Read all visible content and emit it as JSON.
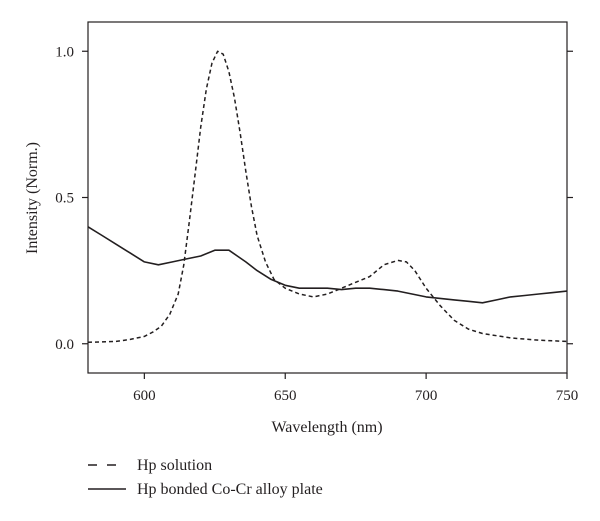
{
  "chart_data": {
    "type": "line",
    "title": "",
    "xlabel": "Wavelength (nm)",
    "ylabel": "Intensity (Norm.)",
    "xlim": [
      580,
      750
    ],
    "ylim": [
      -0.1,
      1.1
    ],
    "xticks": [
      600,
      650,
      700,
      750
    ],
    "xtick_labels": [
      "600",
      "650",
      "700",
      "750"
    ],
    "yticks": [
      0.0,
      0.5,
      1.0
    ],
    "ytick_labels": [
      "0.0",
      "0.5",
      "1.0"
    ],
    "grid": false,
    "legend_position": "bottom-left, below plot",
    "series": [
      {
        "name": "Hp solution",
        "style": "dashed",
        "x": [
          580,
          590,
          595,
          600,
          603,
          606,
          609,
          612,
          614,
          616,
          618,
          620,
          622,
          624,
          626,
          628,
          630,
          632,
          634,
          636,
          638,
          640,
          643,
          646,
          650,
          655,
          660,
          665,
          670,
          675,
          680,
          685,
          690,
          693,
          696,
          700,
          705,
          710,
          715,
          720,
          730,
          740,
          750
        ],
        "y": [
          0.005,
          0.008,
          0.015,
          0.025,
          0.04,
          0.06,
          0.1,
          0.17,
          0.27,
          0.42,
          0.58,
          0.74,
          0.87,
          0.96,
          1.0,
          0.99,
          0.93,
          0.84,
          0.72,
          0.59,
          0.47,
          0.37,
          0.28,
          0.22,
          0.19,
          0.17,
          0.16,
          0.17,
          0.19,
          0.21,
          0.23,
          0.27,
          0.285,
          0.28,
          0.25,
          0.19,
          0.13,
          0.08,
          0.05,
          0.035,
          0.02,
          0.012,
          0.008
        ]
      },
      {
        "name": "Hp bonded Co-Cr alloy plate",
        "style": "solid",
        "x": [
          580,
          585,
          590,
          595,
          600,
          605,
          610,
          615,
          620,
          625,
          628,
          630,
          633,
          636,
          640,
          645,
          650,
          655,
          660,
          665,
          670,
          675,
          680,
          685,
          690,
          695,
          700,
          705,
          710,
          715,
          720,
          725,
          730,
          735,
          740,
          745,
          750
        ],
        "y": [
          0.4,
          0.37,
          0.34,
          0.31,
          0.28,
          0.27,
          0.28,
          0.29,
          0.3,
          0.32,
          0.32,
          0.32,
          0.3,
          0.28,
          0.25,
          0.22,
          0.2,
          0.19,
          0.19,
          0.19,
          0.185,
          0.19,
          0.19,
          0.185,
          0.18,
          0.17,
          0.16,
          0.155,
          0.15,
          0.145,
          0.14,
          0.15,
          0.16,
          0.165,
          0.17,
          0.175,
          0.18
        ]
      }
    ]
  },
  "colors": {
    "ink": "#231f20",
    "background": "#ffffff"
  }
}
